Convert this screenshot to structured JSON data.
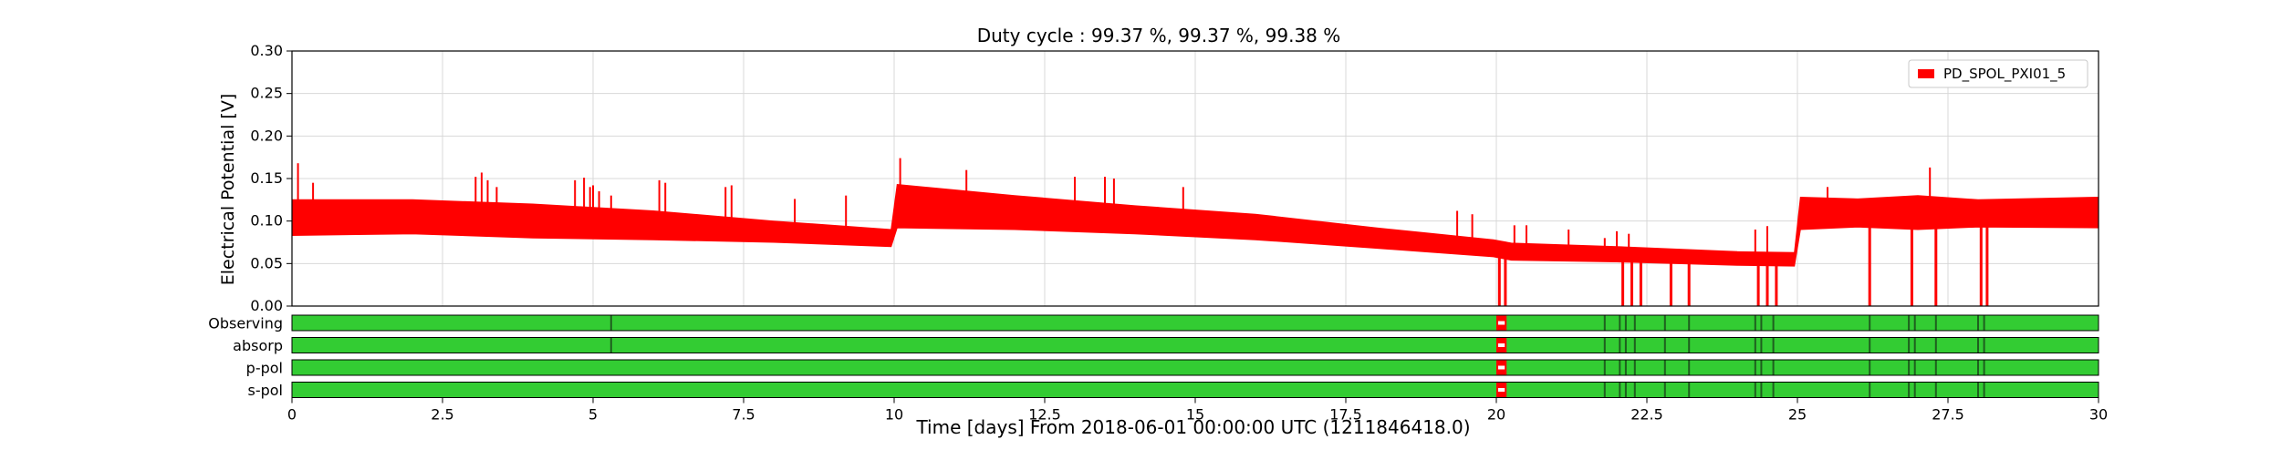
{
  "chart_data": {
    "type": "line",
    "title": "Duty cycle : 99.37 %, 99.37 %, 99.38 %",
    "xlabel": "Time [days] From 2018-06-01 00:00:00 UTC (1211846418.0)",
    "ylabel": "Electrical Potential [V]",
    "xlim": [
      0,
      30
    ],
    "ylim": [
      0,
      0.3
    ],
    "x_ticks": [
      0,
      2.5,
      5,
      7.5,
      10,
      12.5,
      15,
      17.5,
      20,
      22.5,
      25,
      27.5,
      30
    ],
    "x_tick_labels": [
      "0",
      "2.5",
      "5",
      "7.5",
      "10",
      "12.5",
      "15",
      "17.5",
      "20",
      "22.5",
      "25",
      "27.5",
      "30"
    ],
    "y_ticks": [
      0,
      0.05,
      0.1,
      0.15,
      0.2,
      0.25,
      0.3
    ],
    "y_tick_labels": [
      "0.00",
      "0.05",
      "0.10",
      "0.15",
      "0.20",
      "0.25",
      "0.30"
    ],
    "grid": true,
    "legend_position": "top-right",
    "series": [
      {
        "name": "PD_SPOL_PXI01_5",
        "color": "#ff0000",
        "envelope": {
          "x": [
            0,
            2,
            4,
            6,
            8,
            9.95,
            10.05,
            12,
            14,
            16,
            18,
            19.95,
            20.25,
            22,
            24,
            24.95,
            25.05,
            26,
            27,
            28,
            30
          ],
          "upper": [
            0.125,
            0.125,
            0.12,
            0.112,
            0.1,
            0.09,
            0.143,
            0.13,
            0.118,
            0.108,
            0.092,
            0.078,
            0.074,
            0.07,
            0.064,
            0.063,
            0.128,
            0.126,
            0.13,
            0.125,
            0.128
          ],
          "lower": [
            0.083,
            0.085,
            0.08,
            0.078,
            0.075,
            0.07,
            0.092,
            0.09,
            0.085,
            0.078,
            0.068,
            0.058,
            0.054,
            0.052,
            0.048,
            0.047,
            0.09,
            0.093,
            0.09,
            0.093,
            0.092
          ]
        },
        "spikes": [
          {
            "x": 0.1,
            "y": 0.168
          },
          {
            "x": 0.35,
            "y": 0.145
          },
          {
            "x": 3.05,
            "y": 0.152
          },
          {
            "x": 3.15,
            "y": 0.157
          },
          {
            "x": 3.25,
            "y": 0.148
          },
          {
            "x": 3.4,
            "y": 0.14
          },
          {
            "x": 4.7,
            "y": 0.148
          },
          {
            "x": 4.85,
            "y": 0.151
          },
          {
            "x": 4.95,
            "y": 0.14
          },
          {
            "x": 5.0,
            "y": 0.142
          },
          {
            "x": 5.1,
            "y": 0.135
          },
          {
            "x": 5.3,
            "y": 0.13
          },
          {
            "x": 6.1,
            "y": 0.148
          },
          {
            "x": 6.2,
            "y": 0.145
          },
          {
            "x": 7.2,
            "y": 0.14
          },
          {
            "x": 7.3,
            "y": 0.142
          },
          {
            "x": 8.35,
            "y": 0.126
          },
          {
            "x": 9.2,
            "y": 0.13
          },
          {
            "x": 10.1,
            "y": 0.174
          },
          {
            "x": 11.2,
            "y": 0.16
          },
          {
            "x": 13.0,
            "y": 0.152
          },
          {
            "x": 13.5,
            "y": 0.152
          },
          {
            "x": 13.65,
            "y": 0.15
          },
          {
            "x": 14.8,
            "y": 0.14
          },
          {
            "x": 19.35,
            "y": 0.112
          },
          {
            "x": 19.6,
            "y": 0.108
          },
          {
            "x": 20.3,
            "y": 0.095
          },
          {
            "x": 20.5,
            "y": 0.095
          },
          {
            "x": 21.2,
            "y": 0.09
          },
          {
            "x": 21.8,
            "y": 0.08
          },
          {
            "x": 22.0,
            "y": 0.088
          },
          {
            "x": 22.2,
            "y": 0.085
          },
          {
            "x": 24.3,
            "y": 0.09
          },
          {
            "x": 24.5,
            "y": 0.094
          },
          {
            "x": 27.2,
            "y": 0.163
          },
          {
            "x": 25.5,
            "y": 0.14
          }
        ],
        "dropouts": [
          {
            "x": 20.05,
            "y": 0.0
          },
          {
            "x": 20.15,
            "y": 0.0
          },
          {
            "x": 22.1,
            "y": 0.0
          },
          {
            "x": 22.25,
            "y": 0.0
          },
          {
            "x": 22.4,
            "y": 0.0
          },
          {
            "x": 22.9,
            "y": 0.0
          },
          {
            "x": 23.2,
            "y": 0.0
          },
          {
            "x": 24.35,
            "y": 0.0
          },
          {
            "x": 24.5,
            "y": 0.0
          },
          {
            "x": 24.65,
            "y": 0.0
          },
          {
            "x": 26.2,
            "y": 0.0
          },
          {
            "x": 26.9,
            "y": 0.0
          },
          {
            "x": 27.3,
            "y": 0.0
          },
          {
            "x": 28.05,
            "y": 0.0
          },
          {
            "x": 28.15,
            "y": 0.0
          }
        ]
      }
    ],
    "state_segments": {
      "on_color": "#33cc33",
      "off_color": "#ff0000",
      "rows": [
        {
          "label": "Observing",
          "off": [
            [
              20.0,
              20.17
            ]
          ],
          "marks": [
            5.3,
            21.8,
            22.05,
            22.15,
            22.3,
            22.8,
            23.2,
            24.3,
            24.4,
            24.6,
            26.2,
            26.85,
            26.95,
            27.3,
            28.0,
            28.1
          ]
        },
        {
          "label": "absorp",
          "off": [
            [
              20.0,
              20.17
            ]
          ],
          "marks": [
            5.3,
            21.8,
            22.05,
            22.15,
            22.3,
            22.8,
            23.2,
            24.3,
            24.4,
            24.6,
            26.2,
            26.85,
            26.95,
            27.3,
            28.0,
            28.1
          ]
        },
        {
          "label": "p-pol",
          "off": [
            [
              20.0,
              20.17
            ]
          ],
          "marks": [
            21.8,
            22.05,
            22.15,
            22.3,
            22.8,
            23.2,
            24.3,
            24.4,
            24.6,
            26.2,
            26.85,
            26.95,
            27.3,
            28.0,
            28.1
          ]
        },
        {
          "label": "s-pol",
          "off": [
            [
              20.0,
              20.17
            ]
          ],
          "marks": [
            21.8,
            22.05,
            22.15,
            22.3,
            22.8,
            23.2,
            24.3,
            24.4,
            24.6,
            26.2,
            26.85,
            26.95,
            27.3,
            28.0,
            28.1
          ]
        }
      ]
    }
  }
}
